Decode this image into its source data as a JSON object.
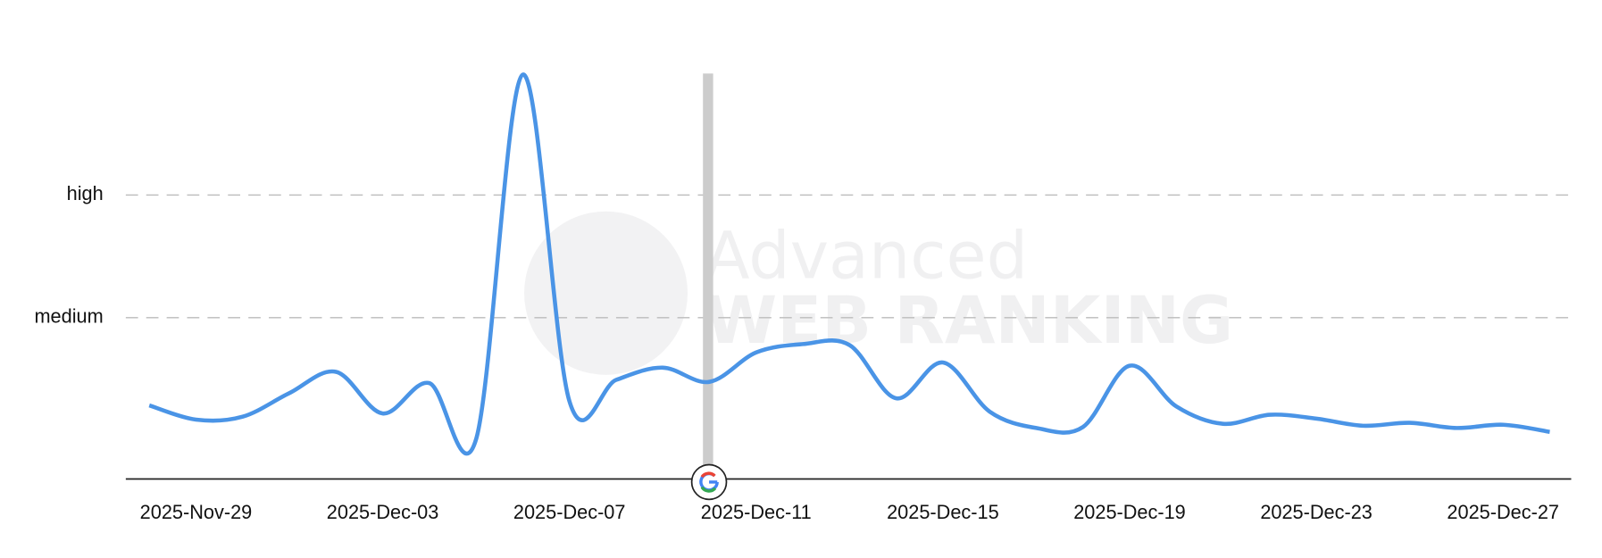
{
  "chart_data": {
    "type": "line",
    "watermark": [
      "Advanced",
      "WEB RANKING"
    ],
    "categories": [
      null,
      "2025-Nov-29",
      null,
      null,
      null,
      "2025-Dec-03",
      null,
      null,
      null,
      "2025-Dec-07",
      null,
      null,
      null,
      "2025-Dec-11",
      null,
      null,
      null,
      "2025-Dec-15",
      null,
      null,
      null,
      "2025-Dec-19",
      null,
      null,
      null,
      "2025-Dec-23",
      null,
      null,
      null,
      "2025-Dec-27",
      null
    ],
    "values": [
      22.8,
      18.4,
      19.3,
      26.6,
      33.2,
      20.3,
      29.7,
      12.3,
      125.3,
      24.1,
      30.7,
      34.5,
      30.1,
      39.2,
      41.8,
      41.5,
      25,
      36.1,
      20.9,
      15.8,
      16.1,
      35.1,
      22.5,
      17.1,
      19.9,
      18.7,
      16.5,
      17.4,
      15.8,
      16.8,
      14.6
    ],
    "color": "#4a94e6",
    "ylim": [
      0,
      130
    ],
    "yticks": [
      {
        "value": 50,
        "label": "medium"
      },
      {
        "value": 88,
        "label": "high"
      }
    ],
    "grid": true
  }
}
